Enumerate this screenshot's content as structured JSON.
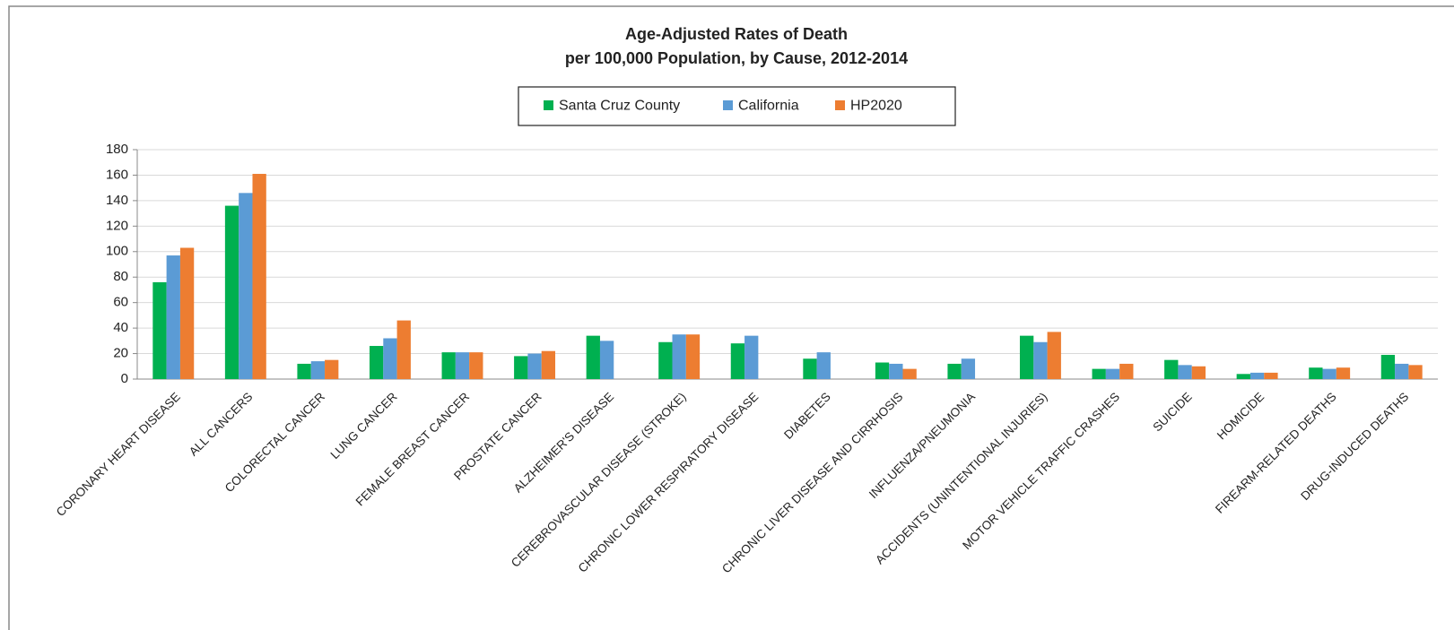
{
  "chart_data": {
    "type": "bar",
    "title": "Age-Adjusted Rates of Death",
    "subtitle": "per 100,000 Population, by Cause, 2012-2014",
    "categories": [
      "CORONARY HEART DISEASE",
      "ALL CANCERS",
      "COLORECTAL CANCER",
      "LUNG CANCER",
      "FEMALE BREAST CANCER",
      "PROSTATE CANCER",
      "ALZHEIMER'S DISEASE",
      "CEREBROVASCULAR DISEASE (STROKE)",
      "CHRONIC LOWER RESPIRATORY DISEASE",
      "DIABETES",
      "CHRONIC LIVER DISEASE AND CIRRHOSIS",
      "INFLUENZA/PNEUMONIA",
      "ACCIDENTS (UNINTENTIONAL INJURIES)",
      "MOTOR VEHICLE TRAFFIC CRASHES",
      "SUICIDE",
      "HOMICIDE",
      "FIREARM-RELATED DEATHS",
      "DRUG-INDUCED DEATHS"
    ],
    "series": [
      {
        "name": "Santa Cruz County",
        "color": "#00b050",
        "values": [
          76,
          136,
          12,
          26,
          21,
          18,
          34,
          29,
          28,
          16,
          13,
          12,
          34,
          8,
          15,
          4,
          9,
          19
        ]
      },
      {
        "name": "California",
        "color": "#5b9bd5",
        "values": [
          97,
          146,
          14,
          32,
          21,
          20,
          30,
          35,
          34,
          21,
          12,
          16,
          29,
          8,
          11,
          5,
          8,
          12
        ]
      },
      {
        "name": "HP2020",
        "color": "#ed7d31",
        "values": [
          103,
          161,
          15,
          46,
          21,
          22,
          null,
          35,
          null,
          null,
          8,
          null,
          37,
          12,
          10,
          5,
          9,
          11
        ]
      }
    ],
    "ylim": [
      0,
      180
    ],
    "yticks": [
      0,
      20,
      40,
      60,
      80,
      100,
      120,
      140,
      160,
      180
    ],
    "grid": true
  }
}
